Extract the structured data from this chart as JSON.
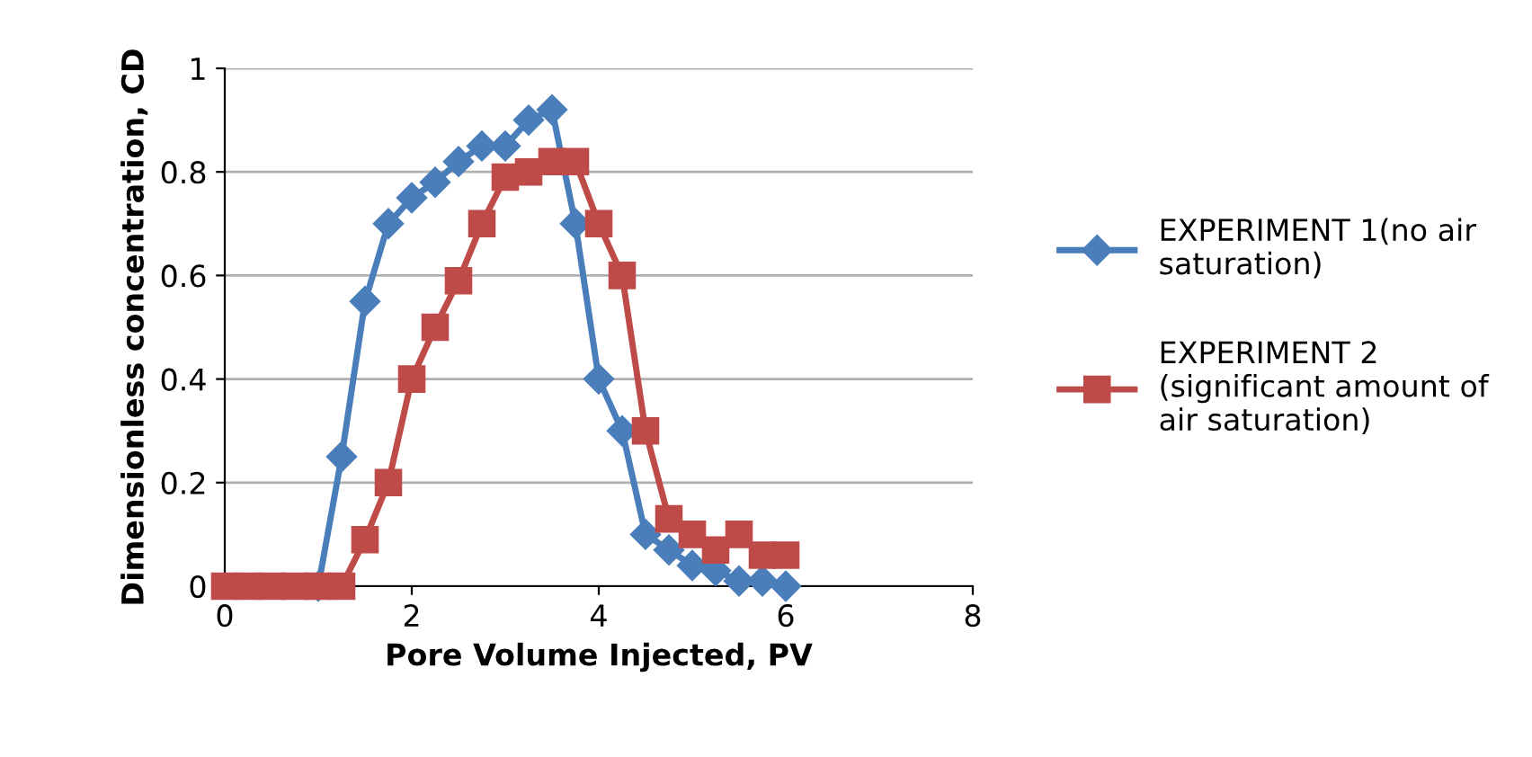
{
  "chart_data": {
    "type": "line",
    "xlabel": "Pore Volume Injected, PV",
    "ylabel": "Dimensionless concentration, CD",
    "x": [
      0,
      0.25,
      0.5,
      0.75,
      1,
      1.25,
      1.5,
      1.75,
      2,
      2.25,
      2.5,
      2.75,
      3,
      3.25,
      3.5,
      3.75,
      4,
      4.25,
      4.5,
      4.75,
      5,
      5.25,
      5.5,
      5.75,
      6
    ],
    "series": [
      {
        "name": "EXPERIMENT 1(no air saturation)",
        "color": "#4a7ebb",
        "marker": "diamond",
        "values": [
          null,
          null,
          null,
          null,
          0,
          0.25,
          0.55,
          0.7,
          0.75,
          0.78,
          0.82,
          0.85,
          0.85,
          0.9,
          0.92,
          0.7,
          0.4,
          0.3,
          0.1,
          0.07,
          0.04,
          0.03,
          0.01,
          0.01,
          0
        ]
      },
      {
        "name": "EXPERIMENT 2 (significant amount of air saturation)",
        "color": "#be4b48",
        "marker": "square",
        "values": [
          0,
          0,
          0,
          0,
          0,
          0,
          0.09,
          0.2,
          0.4,
          0.5,
          0.59,
          0.7,
          0.79,
          0.8,
          0.82,
          0.82,
          0.7,
          0.6,
          0.3,
          0.13,
          0.1,
          0.07,
          0.1,
          0.06,
          0.06
        ]
      }
    ],
    "xlim": [
      0,
      8
    ],
    "xticks": [
      0,
      2,
      4,
      6,
      8
    ],
    "ylim": [
      0,
      1
    ],
    "yticks": [
      0,
      0.2,
      0.4,
      0.6,
      0.8,
      1
    ],
    "grid": "y",
    "legend": "right",
    "line_style": "solid"
  }
}
